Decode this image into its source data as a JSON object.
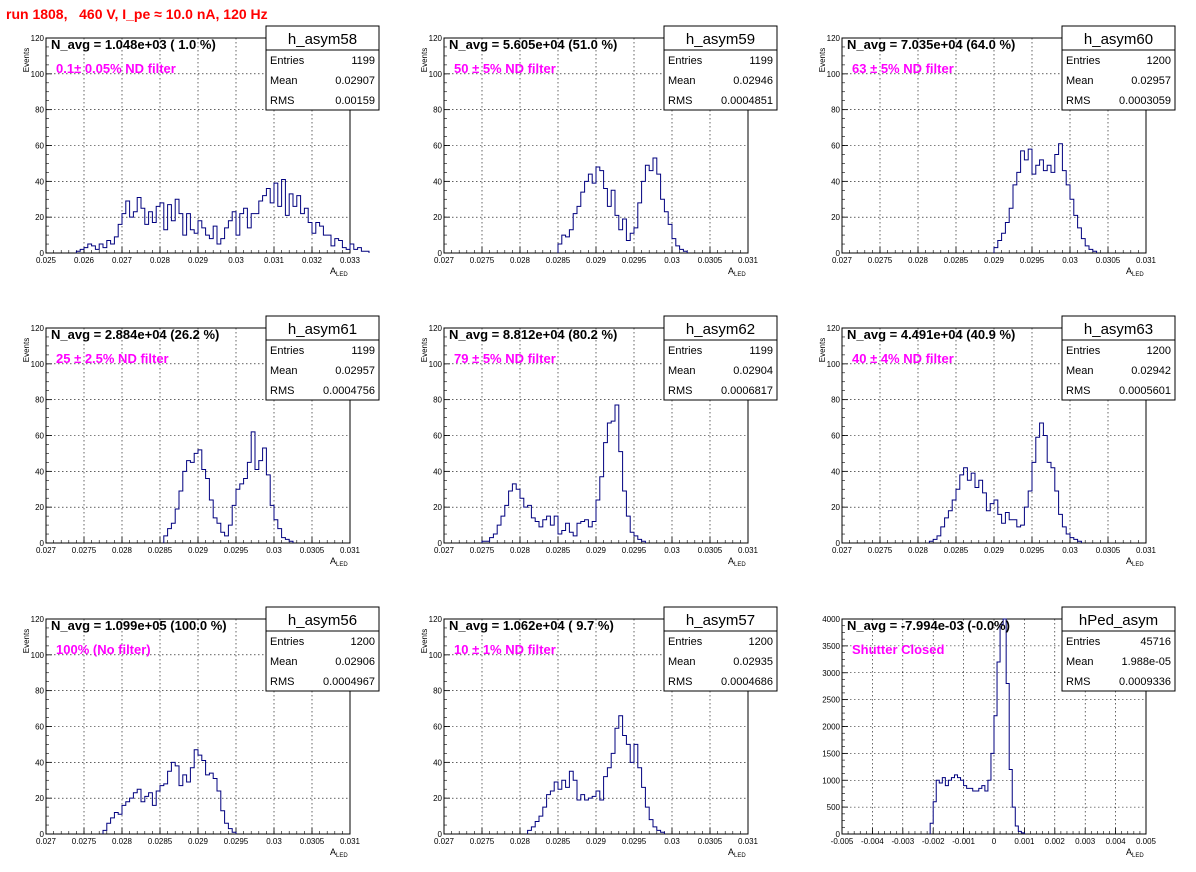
{
  "title": "run 1808,   460 V, I_pe ≈ 10.0 nA, 120 Hz",
  "colors": {
    "title": "#ff0000",
    "histogram": "#00007f",
    "filter_label": "#ff00ff",
    "grid": "#000000"
  },
  "chart_data": [
    {
      "type": "bar",
      "name": "h_asym58",
      "navg_text": "N_avg = 1.048e+03 ( 1.0 %)",
      "filter_text": "0.1± 0.05% ND filter",
      "stats": [
        [
          "Entries",
          "1199"
        ],
        [
          "Mean",
          "0.02907"
        ],
        [
          "RMS",
          "0.00159"
        ]
      ],
      "xlabel": "A_LED",
      "ylabel": "Events",
      "xlim": [
        0.025,
        0.033
      ],
      "ylim": [
        0,
        120
      ],
      "xticks": [
        "0.025",
        "0.026",
        "0.027",
        "0.028",
        "0.029",
        "0.03",
        "0.031",
        "0.032",
        "0.033"
      ],
      "yticks": [
        "0",
        "20",
        "40",
        "60",
        "80",
        "100",
        "120"
      ],
      "bin_width": 0.0001,
      "bin_start": 0.0258,
      "counts": [
        1,
        2,
        3,
        5,
        4,
        2,
        5,
        3,
        7,
        5,
        9,
        16,
        22,
        29,
        20,
        23,
        31,
        25,
        16,
        23,
        17,
        26,
        28,
        13,
        27,
        18,
        30,
        22,
        10,
        22,
        13,
        11,
        18,
        14,
        10,
        8,
        15,
        5,
        8,
        14,
        18,
        23,
        10,
        22,
        25,
        14,
        22,
        22,
        29,
        32,
        36,
        28,
        39,
        26,
        41,
        21,
        33,
        26,
        32,
        22,
        25,
        17,
        11,
        17,
        15,
        10,
        10,
        4,
        8,
        7,
        3,
        2,
        5,
        2,
        3,
        1,
        1
      ]
    },
    {
      "type": "bar",
      "name": "h_asym59",
      "navg_text": "N_avg = 5.605e+04 (51.0 %)",
      "filter_text": "50 ± 5% ND filter",
      "stats": [
        [
          "Entries",
          "1199"
        ],
        [
          "Mean",
          "0.02946"
        ],
        [
          "RMS",
          "0.0004851"
        ]
      ],
      "xlabel": "A_LED",
      "ylabel": "Events",
      "xlim": [
        0.027,
        0.031
      ],
      "ylim": [
        0,
        120
      ],
      "xticks": [
        "0.027",
        "0.0275",
        "0.028",
        "0.0285",
        "0.029",
        "0.0295",
        "0.03",
        "0.0305",
        "0.031"
      ],
      "yticks": [
        "0",
        "20",
        "40",
        "60",
        "80",
        "100",
        "120"
      ],
      "bin_width": 5e-05,
      "bin_start": 0.0285,
      "counts": [
        5,
        10,
        9,
        13,
        22,
        26,
        34,
        40,
        44,
        39,
        48,
        46,
        36,
        26,
        35,
        21,
        13,
        19,
        7,
        11,
        14,
        28,
        40,
        49,
        46,
        53,
        44,
        30,
        23,
        16,
        8,
        4,
        2,
        1
      ]
    },
    {
      "type": "bar",
      "name": "h_asym60",
      "navg_text": "N_avg = 7.035e+04 (64.0 %)",
      "filter_text": "63 ± 5% ND filter",
      "stats": [
        [
          "Entries",
          "1200"
        ],
        [
          "Mean",
          "0.02957"
        ],
        [
          "RMS",
          "0.0003059"
        ]
      ],
      "xlabel": "A_LED",
      "ylabel": "Events",
      "xlim": [
        0.027,
        0.031
      ],
      "ylim": [
        0,
        120
      ],
      "xticks": [
        "0.027",
        "0.0275",
        "0.028",
        "0.0285",
        "0.029",
        "0.0295",
        "0.03",
        "0.0305",
        "0.031"
      ],
      "yticks": [
        "0",
        "20",
        "40",
        "60",
        "80",
        "100",
        "120"
      ],
      "bin_width": 5e-05,
      "bin_start": 0.029,
      "counts": [
        3,
        7,
        11,
        17,
        25,
        38,
        45,
        57,
        52,
        58,
        44,
        49,
        52,
        46,
        49,
        45,
        55,
        61,
        46,
        38,
        30,
        21,
        14,
        8,
        4,
        2,
        1
      ]
    },
    {
      "type": "bar",
      "name": "h_asym61",
      "navg_text": "N_avg = 2.884e+04 (26.2 %)",
      "filter_text": "25 ± 2.5% ND filter",
      "stats": [
        [
          "Entries",
          "1199"
        ],
        [
          "Mean",
          "0.02957"
        ],
        [
          "RMS",
          "0.0004756"
        ]
      ],
      "xlabel": "A_LED",
      "ylabel": "Events",
      "xlim": [
        0.027,
        0.031
      ],
      "ylim": [
        0,
        120
      ],
      "xticks": [
        "0.027",
        "0.0275",
        "0.028",
        "0.0285",
        "0.029",
        "0.0295",
        "0.03",
        "0.0305",
        "0.031"
      ],
      "yticks": [
        "0",
        "20",
        "40",
        "60",
        "80",
        "100",
        "120"
      ],
      "bin_width": 5e-05,
      "bin_start": 0.02855,
      "counts": [
        4,
        8,
        11,
        19,
        29,
        40,
        46,
        45,
        50,
        52,
        41,
        36,
        24,
        14,
        11,
        6,
        4,
        10,
        21,
        30,
        33,
        36,
        45,
        62,
        41,
        46,
        53,
        38,
        21,
        13,
        8,
        3,
        2,
        1
      ]
    },
    {
      "type": "bar",
      "name": "h_asym62",
      "navg_text": "N_avg = 8.812e+04 (80.2 %)",
      "filter_text": "79 ± 5% ND filter",
      "stats": [
        [
          "Entries",
          "1199"
        ],
        [
          "Mean",
          "0.02904"
        ],
        [
          "RMS",
          "0.0006817"
        ]
      ],
      "xlabel": "A_LED",
      "ylabel": "Events",
      "xlim": [
        0.027,
        0.031
      ],
      "ylim": [
        0,
        120
      ],
      "xticks": [
        "0.027",
        "0.0275",
        "0.028",
        "0.0285",
        "0.029",
        "0.0295",
        "0.03",
        "0.0305",
        "0.031"
      ],
      "yticks": [
        "0",
        "20",
        "40",
        "60",
        "80",
        "100",
        "120"
      ],
      "bin_width": 5e-05,
      "bin_start": 0.0275,
      "counts": [
        1,
        1,
        3,
        5,
        10,
        15,
        21,
        29,
        33,
        30,
        25,
        20,
        21,
        14,
        12,
        9,
        13,
        15,
        10,
        15,
        5,
        7,
        11,
        6,
        4,
        11,
        12,
        13,
        9,
        12,
        24,
        37,
        56,
        67,
        68,
        77,
        51,
        29,
        15,
        6,
        4,
        2,
        1
      ]
    },
    {
      "type": "bar",
      "name": "h_asym63",
      "navg_text": "N_avg = 4.491e+04 (40.9 %)",
      "filter_text": "40 ± 4% ND filter",
      "stats": [
        [
          "Entries",
          "1200"
        ],
        [
          "Mean",
          "0.02942"
        ],
        [
          "RMS",
          "0.0005601"
        ]
      ],
      "xlabel": "A_LED",
      "ylabel": "Events",
      "xlim": [
        0.027,
        0.031
      ],
      "ylim": [
        0,
        120
      ],
      "xticks": [
        "0.027",
        "0.0275",
        "0.028",
        "0.0285",
        "0.029",
        "0.0295",
        "0.03",
        "0.0305",
        "0.031"
      ],
      "yticks": [
        "0",
        "20",
        "40",
        "60",
        "80",
        "100",
        "120"
      ],
      "bin_width": 5e-05,
      "bin_start": 0.02815,
      "counts": [
        1,
        2,
        4,
        9,
        14,
        18,
        24,
        30,
        38,
        42,
        35,
        39,
        31,
        35,
        28,
        18,
        22,
        24,
        16,
        11,
        17,
        13,
        13,
        9,
        10,
        20,
        29,
        45,
        59,
        67,
        60,
        45,
        42,
        29,
        16,
        9,
        5,
        3,
        2,
        1
      ]
    },
    {
      "type": "bar",
      "name": "h_asym56",
      "navg_text": "N_avg = 1.099e+05 (100.0 %)",
      "filter_text": "100% (No filter)",
      "stats": [
        [
          "Entries",
          "1200"
        ],
        [
          "Mean",
          "0.02906"
        ],
        [
          "RMS",
          "0.0004967"
        ]
      ],
      "xlabel": "A_LED",
      "ylabel": "Events",
      "xlim": [
        0.027,
        0.031
      ],
      "ylim": [
        0,
        120
      ],
      "xticks": [
        "0.027",
        "0.0275",
        "0.028",
        "0.0285",
        "0.029",
        "0.0295",
        "0.03",
        "0.0305",
        "0.031"
      ],
      "yticks": [
        "0",
        "20",
        "40",
        "60",
        "80",
        "100",
        "120"
      ],
      "bin_width": 5e-05,
      "bin_start": 0.02775,
      "counts": [
        2,
        6,
        9,
        12,
        11,
        16,
        18,
        20,
        23,
        25,
        18,
        21,
        23,
        16,
        24,
        27,
        28,
        35,
        40,
        38,
        27,
        33,
        29,
        37,
        47,
        44,
        41,
        33,
        34,
        31,
        24,
        13,
        6,
        3,
        1
      ]
    },
    {
      "type": "bar",
      "name": "h_asym57",
      "navg_text": "N_avg = 1.062e+04 ( 9.7 %)",
      "filter_text": "10 ± 1% ND filter",
      "stats": [
        [
          "Entries",
          "1200"
        ],
        [
          "Mean",
          "0.02935"
        ],
        [
          "RMS",
          "0.0004686"
        ]
      ],
      "xlabel": "A_LED",
      "ylabel": "Events",
      "xlim": [
        0.027,
        0.031
      ],
      "ylim": [
        0,
        120
      ],
      "xticks": [
        "0.027",
        "0.0275",
        "0.028",
        "0.0285",
        "0.029",
        "0.0295",
        "0.03",
        "0.0305",
        "0.031"
      ],
      "yticks": [
        "0",
        "20",
        "40",
        "60",
        "80",
        "100",
        "120"
      ],
      "bin_width": 5e-05,
      "bin_start": 0.0281,
      "counts": [
        2,
        4,
        7,
        10,
        15,
        22,
        24,
        29,
        25,
        30,
        26,
        35,
        30,
        19,
        22,
        19,
        20,
        21,
        24,
        19,
        32,
        37,
        45,
        59,
        66,
        55,
        50,
        40,
        50,
        37,
        26,
        15,
        8,
        4,
        2,
        1
      ]
    },
    {
      "type": "bar",
      "name": "hPed_asym",
      "navg_text": "N_avg = -7.994e-03 (-0.0%)",
      "filter_text": "Shutter Closed",
      "stats": [
        [
          "Entries",
          "45716"
        ],
        [
          "Mean",
          "1.988e-05"
        ],
        [
          "RMS",
          "0.0009336"
        ]
      ],
      "xlabel": "A_LED",
      "ylabel": "",
      "xlim": [
        -0.005,
        0.005
      ],
      "ylim": [
        0,
        4000
      ],
      "xticks": [
        "-0.005",
        "-0.004",
        "-0.003",
        "-0.002",
        "-0.001",
        "0",
        "0.001",
        "0.002",
        "0.003",
        "0.004",
        "0.005"
      ],
      "yticks": [
        "0",
        "500",
        "1000",
        "1500",
        "2000",
        "2500",
        "3000",
        "3500",
        "4000"
      ],
      "bin_width": 0.0001,
      "bin_start": -0.0021,
      "counts": [
        200,
        600,
        1000,
        950,
        1050,
        900,
        1000,
        1050,
        1100,
        1050,
        1000,
        900,
        850,
        850,
        800,
        800,
        850,
        900,
        800,
        1000,
        1500,
        2200,
        3200,
        3900,
        4000,
        2800,
        1200,
        500,
        150,
        50,
        20
      ]
    }
  ]
}
